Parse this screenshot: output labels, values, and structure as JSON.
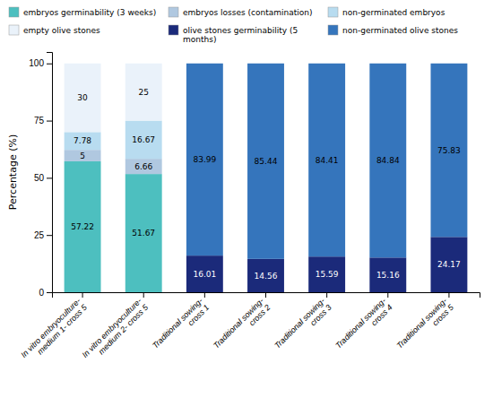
{
  "chart_data": {
    "type": "bar",
    "stacked": true,
    "data_labels": true,
    "grid": false,
    "legend": "top",
    "categories": [
      "In vitro embryoculture-\nmedium 1- cross 5",
      "In vitro embryoculture-\nmedium 2- cross 5",
      "Traditional sowing-\ncross 1",
      "Traditional sowing-\ncross 2",
      "Traditional sowing-\ncross 3",
      "Traditional sowing-\ncross 4",
      "Traditional sowing-\ncross 5"
    ],
    "series": [
      {
        "name": "embryos germinability (3 weeks)",
        "color": "#4DBFBF",
        "values": [
          57.22,
          51.67,
          0,
          0,
          0,
          0,
          0
        ]
      },
      {
        "name": "embryos losses (contamination)",
        "color": "#B0C8E0",
        "values": [
          5.0,
          6.66,
          0,
          0,
          0,
          0,
          0
        ]
      },
      {
        "name": "non-germinated embryos",
        "color": "#B8DCF0",
        "values": [
          7.78,
          16.67,
          0,
          0,
          0,
          0,
          0
        ]
      },
      {
        "name": "empty olive stones",
        "color": "#EAF2FA",
        "values": [
          30.0,
          25.0,
          0,
          0,
          0,
          0,
          0
        ]
      },
      {
        "name": "olive stones germinability (5\nmonths)",
        "color": "#1B2A7A",
        "values": [
          0,
          0,
          16.01,
          14.56,
          15.59,
          15.16,
          24.17
        ]
      },
      {
        "name": "non-germinated olive stones",
        "color": "#3575BC",
        "values": [
          0,
          0,
          83.99,
          85.44,
          84.41,
          84.84,
          75.83
        ]
      }
    ],
    "ylabel": "Percentage (%)",
    "ylim": [
      0,
      105
    ],
    "yticks": [
      0,
      25,
      50,
      75,
      100
    ]
  }
}
